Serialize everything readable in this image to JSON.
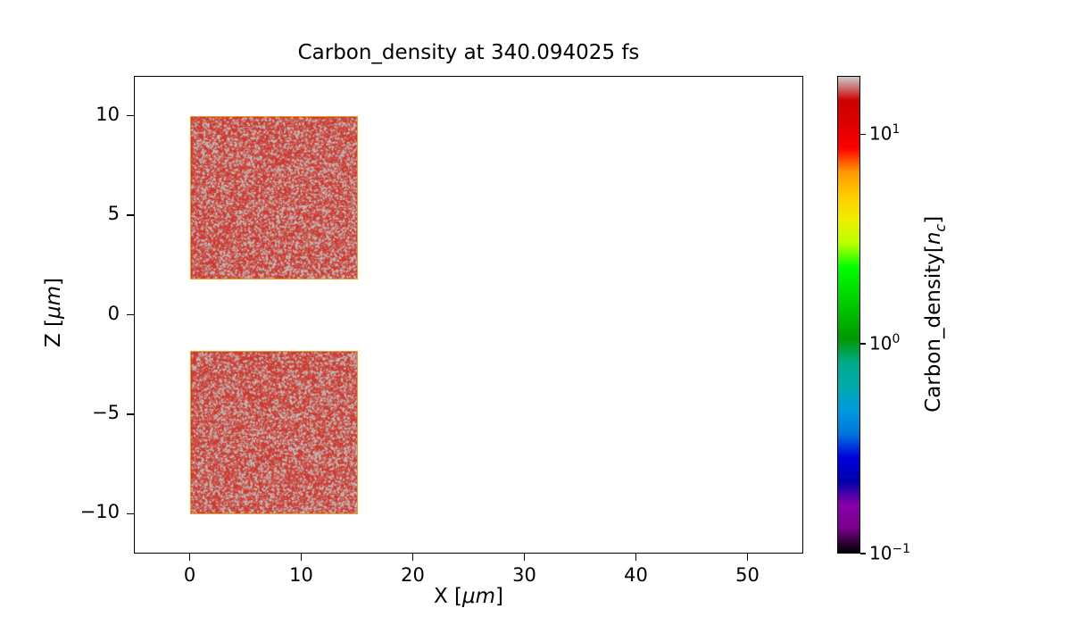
{
  "chart_data": {
    "type": "heatmap",
    "title": "Carbon_density at 340.094025 fs",
    "xlabel": {
      "pre": "X [",
      "math": "μm",
      "post": "]"
    },
    "ylabel": {
      "pre": "Z [",
      "math": "μm",
      "post": "]"
    },
    "xlim": [
      -5,
      55
    ],
    "zlim": [
      -12,
      12
    ],
    "x_ticks": [
      0,
      10,
      20,
      30,
      40,
      50
    ],
    "z_ticks": [
      10,
      5,
      0,
      -5,
      -10
    ],
    "grid": false,
    "background": "#ffffff",
    "blocks": [
      {
        "x0": 0,
        "x1": 15,
        "z0": 1.8,
        "z1": 10,
        "description": "upper carbon slab, density near colormap top (~10-19 n_c), red with saturated gray speckle"
      },
      {
        "x0": 0,
        "x1": 15,
        "z0": -10,
        "z1": -1.8,
        "description": "lower carbon slab, density near colormap top (~10-19 n_c), red with saturated gray speckle"
      }
    ],
    "block_style": {
      "fill": "#cd3b33",
      "speckle": "#c3bcb8",
      "speckle_fraction": 0.28,
      "edge": "#ef9f1c"
    },
    "colorbar": {
      "label": {
        "pre": "Carbon_density[",
        "math": "n",
        "sub": "c",
        "post": "]"
      },
      "scale": "log",
      "vmin": 0.1,
      "vmax": 19,
      "tick_base": "10",
      "ticks": [
        {
          "value": 10,
          "exp": "1"
        },
        {
          "value": 1,
          "exp": "0"
        },
        {
          "value": 0.1,
          "exp": "−1"
        }
      ],
      "colormap": "nipy_spectral",
      "stops": [
        {
          "pos": 0.0,
          "color": "#000000"
        },
        {
          "pos": 0.05,
          "color": "#770088"
        },
        {
          "pos": 0.1,
          "color": "#8800aa"
        },
        {
          "pos": 0.15,
          "color": "#0000aa"
        },
        {
          "pos": 0.2,
          "color": "#0000dd"
        },
        {
          "pos": 0.25,
          "color": "#0077dd"
        },
        {
          "pos": 0.3,
          "color": "#0099dd"
        },
        {
          "pos": 0.35,
          "color": "#00aaaa"
        },
        {
          "pos": 0.4,
          "color": "#00aa88"
        },
        {
          "pos": 0.45,
          "color": "#009900"
        },
        {
          "pos": 0.5,
          "color": "#00bb00"
        },
        {
          "pos": 0.55,
          "color": "#00dd00"
        },
        {
          "pos": 0.6,
          "color": "#00ff00"
        },
        {
          "pos": 0.65,
          "color": "#bbff00"
        },
        {
          "pos": 0.7,
          "color": "#eeee00"
        },
        {
          "pos": 0.75,
          "color": "#ffcc00"
        },
        {
          "pos": 0.8,
          "color": "#ff9900"
        },
        {
          "pos": 0.85,
          "color": "#ff0000"
        },
        {
          "pos": 0.9,
          "color": "#dd0000"
        },
        {
          "pos": 0.95,
          "color": "#cc0000"
        },
        {
          "pos": 1.0,
          "color": "#cccccc"
        }
      ]
    }
  }
}
